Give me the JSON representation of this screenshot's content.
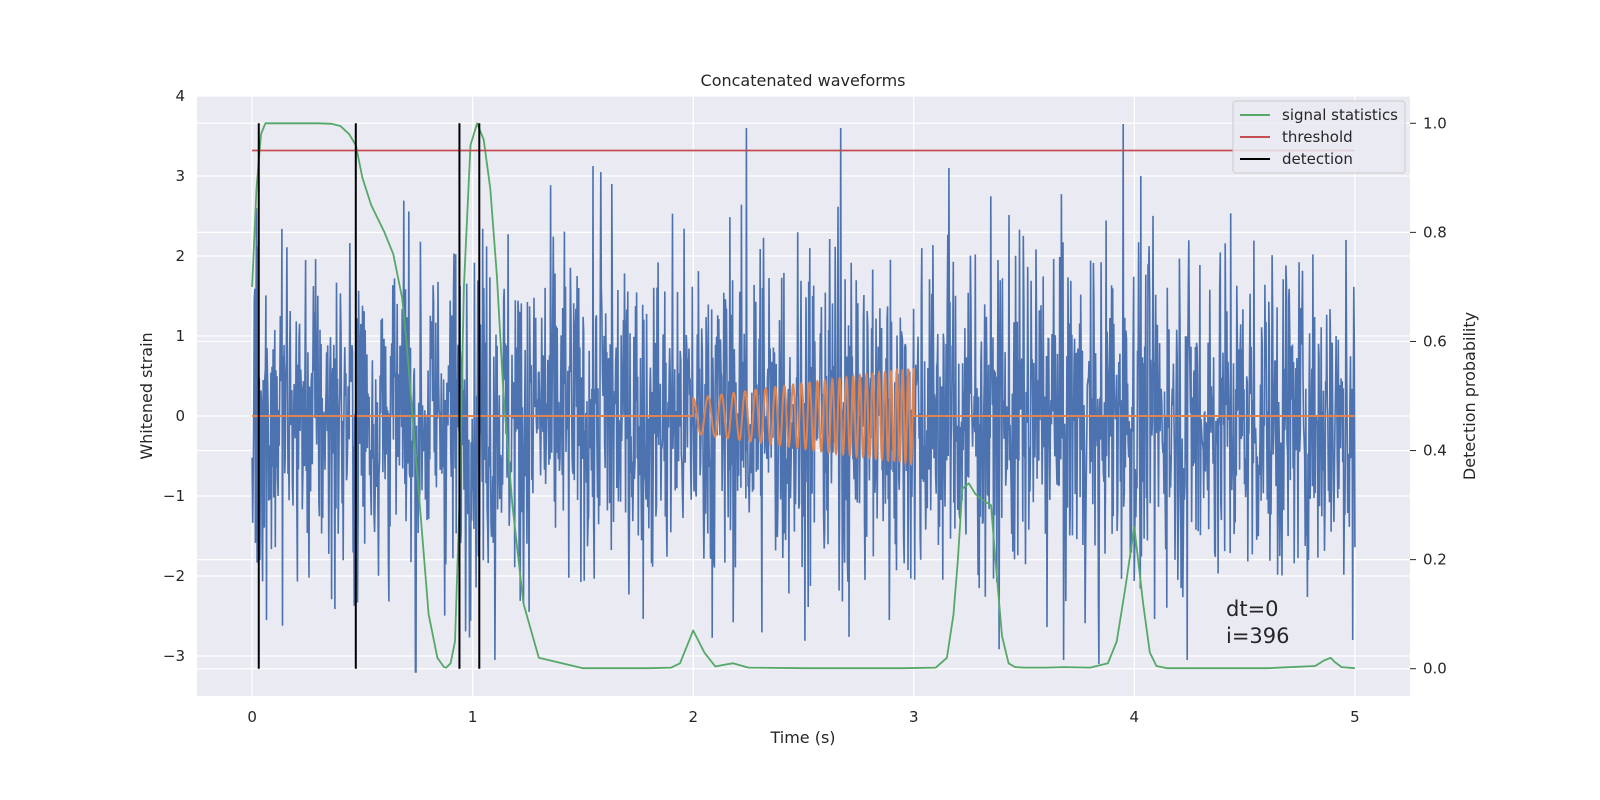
{
  "chart_data": {
    "type": "line",
    "title": "Concatenated waveforms",
    "xlabel": "Time (s)",
    "ylabel": "Whitened strain",
    "y2label": "Detection probability",
    "xlim": [
      -0.25,
      5.25
    ],
    "ylim": [
      -3.5,
      4.0
    ],
    "y2lim": [
      -0.05,
      1.05
    ],
    "x_ticks": [
      0,
      1,
      2,
      3,
      4,
      5
    ],
    "y_ticks": [
      -3,
      -2,
      -1,
      0,
      1,
      2,
      3,
      4
    ],
    "y2_ticks": [
      0.0,
      0.2,
      0.4,
      0.6,
      0.8,
      1.0
    ],
    "x_tick_labels": [
      "0",
      "1",
      "2",
      "3",
      "4",
      "5"
    ],
    "y_tick_labels": [
      "−3",
      "−2",
      "−1",
      "0",
      "1",
      "2",
      "3",
      "4"
    ],
    "y2_tick_labels": [
      "0.0",
      "0.2",
      "0.4",
      "0.6",
      "0.8",
      "1.0"
    ],
    "grid": true,
    "legend_position": "top-right",
    "legend": [
      {
        "label": "signal statistics",
        "color": "#55a868"
      },
      {
        "label": "threshold",
        "color": "#c44e52"
      },
      {
        "label": "detection",
        "color": "#000000"
      }
    ],
    "series": [
      {
        "axis": "left",
        "color": "#4c72b0",
        "kind": "noise",
        "x_range": [
          0,
          5
        ],
        "typical_range": [
          -2.7,
          2.7
        ],
        "max": 3.65,
        "min": -3.2,
        "peaks": [
          {
            "x": 2.24,
            "y": 3.6
          },
          {
            "x": 2.67,
            "y": 3.6
          },
          {
            "x": 3.95,
            "y": 3.65
          },
          {
            "x": 3.16,
            "y": 3.1
          },
          {
            "x": 1.58,
            "y": 3.05
          },
          {
            "x": 1.63,
            "y": 2.9
          },
          {
            "x": 4.96,
            "y": 2.2
          },
          {
            "x": 0.74,
            "y": -3.2
          },
          {
            "x": 1.1,
            "y": -3.05
          },
          {
            "x": 3.68,
            "y": -3.05
          },
          {
            "x": 3.84,
            "y": -3.1
          },
          {
            "x": 4.24,
            "y": -3.05
          },
          {
            "x": 4.99,
            "y": -2.8
          }
        ]
      },
      {
        "axis": "left",
        "color": "#dd8452",
        "kind": "chirp",
        "x": [
          0,
          2.0,
          3.0,
          5
        ],
        "amplitude_start": 0.22,
        "amplitude_end": 0.6,
        "chirp_start": 2.0,
        "chirp_end": 3.0,
        "frequency_start_hz": 14,
        "frequency_end_hz": 40
      },
      {
        "name": "signal statistics",
        "axis": "right",
        "color": "#55a868",
        "x": [
          0.0,
          0.02,
          0.04,
          0.06,
          0.1,
          0.2,
          0.3,
          0.36,
          0.4,
          0.44,
          0.47,
          0.5,
          0.54,
          0.6,
          0.64,
          0.68,
          0.7,
          0.72,
          0.74,
          0.76,
          0.78,
          0.8,
          0.84,
          0.87,
          0.88,
          0.9,
          0.92,
          0.94,
          0.96,
          0.99,
          1.02,
          1.05,
          1.08,
          1.11,
          1.14,
          1.18,
          1.23,
          1.3,
          1.5,
          1.8,
          1.9,
          1.94,
          1.97,
          2.0,
          2.05,
          2.1,
          2.15,
          2.18,
          2.25,
          2.5,
          2.8,
          2.95,
          3.1,
          3.15,
          3.18,
          3.2,
          3.22,
          3.25,
          3.28,
          3.31,
          3.35,
          3.37,
          3.4,
          3.43,
          3.46,
          3.5,
          3.6,
          3.68,
          3.8,
          3.88,
          3.92,
          3.96,
          4.0,
          4.04,
          4.07,
          4.1,
          4.15,
          4.3,
          4.6,
          4.82,
          4.86,
          4.89,
          4.91,
          4.94,
          5.0
        ],
        "y": [
          0.7,
          0.88,
          0.98,
          1.0,
          1.0,
          1.0,
          1.0,
          0.999,
          0.995,
          0.98,
          0.96,
          0.9,
          0.85,
          0.8,
          0.76,
          0.68,
          0.6,
          0.5,
          0.4,
          0.3,
          0.2,
          0.1,
          0.02,
          0.003,
          0.002,
          0.01,
          0.05,
          0.3,
          0.7,
          0.96,
          1.0,
          0.97,
          0.88,
          0.72,
          0.5,
          0.3,
          0.12,
          0.02,
          0.001,
          0.001,
          0.002,
          0.01,
          0.04,
          0.07,
          0.03,
          0.004,
          0.008,
          0.01,
          0.002,
          0.001,
          0.001,
          0.001,
          0.002,
          0.02,
          0.1,
          0.2,
          0.33,
          0.34,
          0.32,
          0.31,
          0.3,
          0.2,
          0.06,
          0.01,
          0.003,
          0.002,
          0.002,
          0.003,
          0.002,
          0.01,
          0.05,
          0.15,
          0.26,
          0.12,
          0.03,
          0.005,
          0.001,
          0.001,
          0.001,
          0.005,
          0.015,
          0.02,
          0.012,
          0.003,
          0.001
        ]
      },
      {
        "name": "threshold",
        "axis": "right",
        "color": "#c44e52",
        "x": [
          0,
          5
        ],
        "y": [
          0.95,
          0.95
        ]
      }
    ],
    "detections": {
      "color": "#000000",
      "x": [
        0.03,
        0.47,
        0.94,
        1.03
      ],
      "y_range": [
        0,
        1
      ]
    },
    "annotations": [
      "dt=0",
      "i=396"
    ]
  }
}
